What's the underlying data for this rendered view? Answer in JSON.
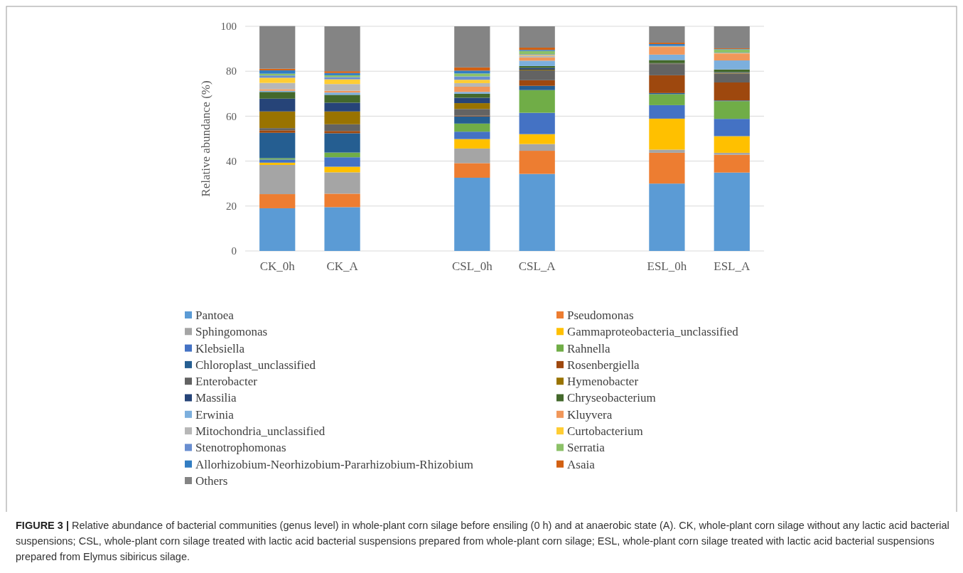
{
  "chart_data": {
    "type": "bar",
    "stacked": true,
    "ylabel": "Relative abundance (%)",
    "categories": [
      "CK_0h",
      "CK_A",
      null,
      "CSL_0h",
      "CSL_A",
      null,
      "ESL_0h",
      "ESL_A"
    ],
    "ylim": [
      0,
      100
    ],
    "yticks": [
      0,
      20,
      40,
      60,
      80,
      100
    ],
    "grid": "y",
    "legend": "bottom",
    "series": [
      {
        "name": "Pantoea",
        "color": "#5b9bd5",
        "values": [
          19,
          19.5,
          null,
          32.6,
          34.3,
          null,
          30.0,
          34.9
        ]
      },
      {
        "name": "Pseudomonas",
        "color": "#ed7d31",
        "values": [
          6.3,
          6.0,
          null,
          6.5,
          10.3,
          null,
          13.7,
          7.9
        ]
      },
      {
        "name": "Sphingomonas",
        "color": "#a5a5a5",
        "values": [
          13,
          9.5,
          null,
          6.5,
          3.0,
          null,
          1.4,
          0.9
        ]
      },
      {
        "name": "Gammaproteobacteria_unclassified",
        "color": "#ffc000",
        "values": [
          1.0,
          2.5,
          null,
          4.2,
          4.4,
          null,
          13.8,
          7.4
        ]
      },
      {
        "name": "Klebsiella",
        "color": "#4472c4",
        "values": [
          1.4,
          4.2,
          null,
          3.3,
          9.5,
          null,
          6.0,
          7.7
        ]
      },
      {
        "name": "Rahnella",
        "color": "#70ad47",
        "values": [
          0.6,
          2.1,
          null,
          3.6,
          10.1,
          null,
          4.9,
          7.9
        ]
      },
      {
        "name": "Chloroplast_unclassified",
        "color": "#255e91",
        "values": [
          11.3,
          8.6,
          null,
          3.2,
          1.9,
          null,
          0.5,
          0.3
        ]
      },
      {
        "name": "Rosenbergiella",
        "color": "#9e480e",
        "values": [
          1.1,
          1.0,
          null,
          0.3,
          2.5,
          null,
          7.9,
          8.0
        ]
      },
      {
        "name": "Enterobacter",
        "color": "#636363",
        "values": [
          1.0,
          3.0,
          null,
          3.0,
          4.4,
          null,
          5.0,
          4.0
        ]
      },
      {
        "name": "Hymenobacter",
        "color": "#997300",
        "values": [
          7.4,
          5.7,
          null,
          2.6,
          0.3,
          null,
          0.2,
          0.3
        ]
      },
      {
        "name": "Massilia",
        "color": "#264478",
        "values": [
          5.7,
          3.9,
          null,
          2.4,
          0.8,
          null,
          0.2,
          0.3
        ]
      },
      {
        "name": "Chryseobacterium",
        "color": "#43682b",
        "values": [
          3.0,
          3.5,
          null,
          1.8,
          0.8,
          null,
          1.4,
          1.2
        ]
      },
      {
        "name": "Erwinia",
        "color": "#7cafdd",
        "values": [
          0.5,
          1.0,
          null,
          0.8,
          2.4,
          null,
          2.4,
          4.0
        ]
      },
      {
        "name": "Kluyvera",
        "color": "#f1975a",
        "values": [
          0.7,
          0.8,
          null,
          2.3,
          1.4,
          null,
          3.4,
          3.1
        ]
      },
      {
        "name": "Mitochondria_unclassified",
        "color": "#b7b7b7",
        "values": [
          2.8,
          3.0,
          null,
          1.6,
          0.9,
          null,
          null,
          null
        ]
      },
      {
        "name": "Curtobacterium",
        "color": "#ffcd33",
        "values": [
          2.3,
          2.1,
          null,
          1.5,
          0.3,
          null,
          0.2,
          0.2
        ]
      },
      {
        "name": "Stenotrophomonas",
        "color": "#698ed0",
        "values": [
          1.0,
          1.0,
          null,
          1.5,
          0.3,
          null,
          0.3,
          0.2
        ]
      },
      {
        "name": "Serratia",
        "color": "#8cc168",
        "values": [
          0.8,
          0.8,
          null,
          1.3,
          1.4,
          null,
          null,
          1.4
        ]
      },
      {
        "name": "Allorhizobium-Neorhizobium-Pararhizobium-Rhizobium",
        "color": "#327dc2",
        "values": [
          1.5,
          1.0,
          null,
          1.3,
          0.5,
          null,
          0.8,
          0.2
        ]
      },
      {
        "name": "Asaia",
        "color": "#d26012",
        "values": [
          0.7,
          0.8,
          null,
          1.4,
          1.0,
          null,
          0.6,
          0.3
        ]
      },
      {
        "name": "Others",
        "color": "#848484",
        "values": [
          19.0,
          20.0,
          null,
          18.3,
          9.5,
          null,
          7.3,
          9.8
        ]
      }
    ],
    "annotations": [
      "FIGURE 3 | Relative abundance of bacterial communities (genus level) in whole-plant corn silage before ensiling (0 h) and at anaerobic state (A). CK, whole-plant corn silage without any lactic acid bacterial suspensions; CSL, whole-plant corn silage treated with lactic acid bacterial suspensions prepared from whole-plant corn silage; ESL, whole-plant corn silage treated with lactic acid bacterial suspensions prepared from Elymus sibiricus silage."
    ]
  }
}
